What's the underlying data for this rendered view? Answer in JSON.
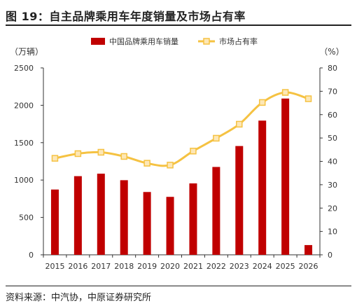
{
  "title": "图 19：自主品牌乘用车年度销量及市场占有率",
  "source": "资料来源：中汽协，中原证券研究所",
  "chart_data": {
    "type": "bar+line",
    "categories": [
      "2015",
      "2016",
      "2017",
      "2018",
      "2019",
      "2020",
      "2021",
      "2022",
      "2023",
      "2024",
      "2025",
      "2026"
    ],
    "series": [
      {
        "name": "中国品牌乘用车销量",
        "type": "bar",
        "axis": "left",
        "color": "#c00000",
        "values": [
          873,
          1052,
          1085,
          998,
          840,
          775,
          955,
          1175,
          1455,
          1795,
          2090,
          130
        ]
      },
      {
        "name": "市场占有率",
        "type": "line",
        "axis": "right",
        "color": "#f5c242",
        "marker_fill": "#fde7b6",
        "values": [
          41.3,
          43.3,
          43.9,
          42.1,
          39.2,
          38.4,
          44.4,
          49.9,
          55.9,
          65.2,
          69.5,
          66.8
        ]
      }
    ],
    "y_left": {
      "label": "（万辆）",
      "ylim": [
        0,
        2500
      ],
      "ticks": [
        "0",
        "500",
        "1000",
        "1500",
        "2000",
        "2500"
      ]
    },
    "y_right": {
      "label": "（%）",
      "ylim": [
        0,
        80
      ],
      "ticks": [
        "0",
        "10",
        "20",
        "30",
        "40",
        "50",
        "60",
        "70",
        "80"
      ]
    },
    "legend_position": "top-center",
    "grid": false
  }
}
